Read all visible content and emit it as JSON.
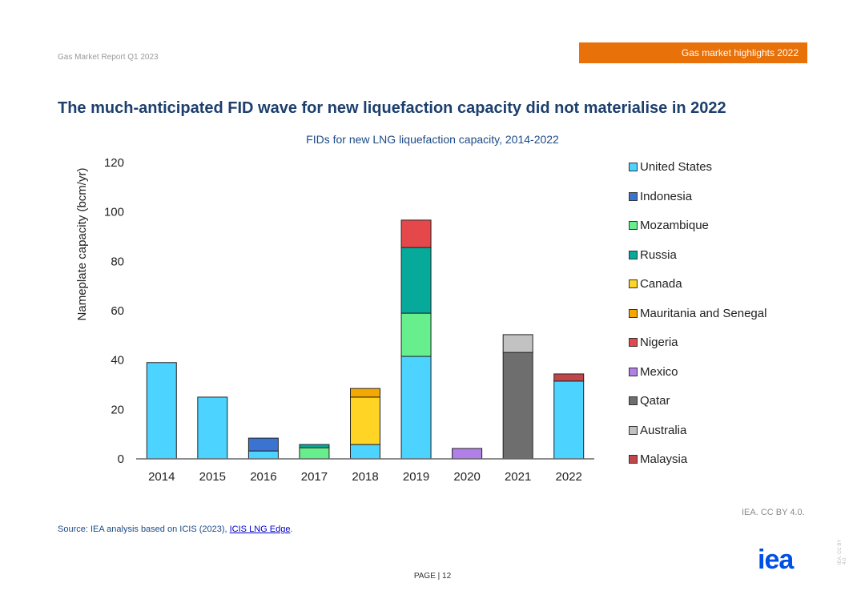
{
  "header": {
    "report": "Gas Market Report Q1 2023",
    "section": "Gas market highlights 2022"
  },
  "title": "The much-anticipated FID wave for new liquefaction capacity did not materialise in 2022",
  "footer": {
    "source_prefix": "Source: IEA analysis based on ICIS (2023), ",
    "source_link": "ICIS LNG Edge",
    "source_suffix": ".",
    "credit": "IEA. CC BY 4.0.",
    "page": "PAGE | 12",
    "logo": "iea",
    "vertical_credit": "IEA. CC BY 4.0."
  },
  "chart_data": {
    "type": "bar",
    "stacked": true,
    "title": "FIDs for new LNG liquefaction capacity, 2014-2022",
    "xlabel": "",
    "ylabel": "Nameplate capacity (bcm/yr)",
    "ylim": [
      0,
      120
    ],
    "yticks": [
      0,
      20,
      40,
      60,
      80,
      100,
      120
    ],
    "categories": [
      "2014",
      "2015",
      "2016",
      "2017",
      "2018",
      "2019",
      "2020",
      "2021",
      "2022"
    ],
    "legend_position": "right",
    "series": [
      {
        "name": "United States",
        "color": "#4cd3ff",
        "values": [
          39,
          25,
          3.2,
          0,
          5.8,
          41.5,
          0,
          0,
          31.5
        ]
      },
      {
        "name": "Indonesia",
        "color": "#3b73d1",
        "values": [
          0,
          0,
          5.2,
          0,
          0,
          0,
          0,
          0,
          0
        ]
      },
      {
        "name": "Mozambique",
        "color": "#66ef8c",
        "values": [
          0,
          0,
          0,
          4.5,
          0,
          17.5,
          0,
          0,
          0
        ]
      },
      {
        "name": "Russia",
        "color": "#06a99a",
        "values": [
          0,
          0,
          0,
          1.3,
          0,
          26.6,
          0,
          0,
          0
        ]
      },
      {
        "name": "Canada",
        "color": "#ffd424",
        "values": [
          0,
          0,
          0,
          0,
          19.2,
          0,
          0,
          0,
          0
        ]
      },
      {
        "name": "Mauritania and Senegal",
        "color": "#f5a800",
        "values": [
          0,
          0,
          0,
          0,
          3.5,
          0,
          0,
          0,
          0
        ]
      },
      {
        "name": "Nigeria",
        "color": "#e5484a",
        "values": [
          0,
          0,
          0,
          0,
          0,
          11.1,
          0,
          0,
          0
        ]
      },
      {
        "name": "Mexico",
        "color": "#b07fe8",
        "values": [
          0,
          0,
          0,
          0,
          0,
          0,
          4.2,
          0,
          0
        ]
      },
      {
        "name": "Qatar",
        "color": "#6e6e6e",
        "values": [
          0,
          0,
          0,
          0,
          0,
          0,
          0,
          43.1,
          0
        ]
      },
      {
        "name": "Australia",
        "color": "#c2c2c2",
        "values": [
          0,
          0,
          0,
          0,
          0,
          0,
          0,
          7.2,
          0
        ]
      },
      {
        "name": "Malaysia",
        "color": "#c0464a",
        "values": [
          0,
          0,
          0,
          0,
          0,
          0,
          0,
          0,
          2.9
        ]
      }
    ]
  }
}
